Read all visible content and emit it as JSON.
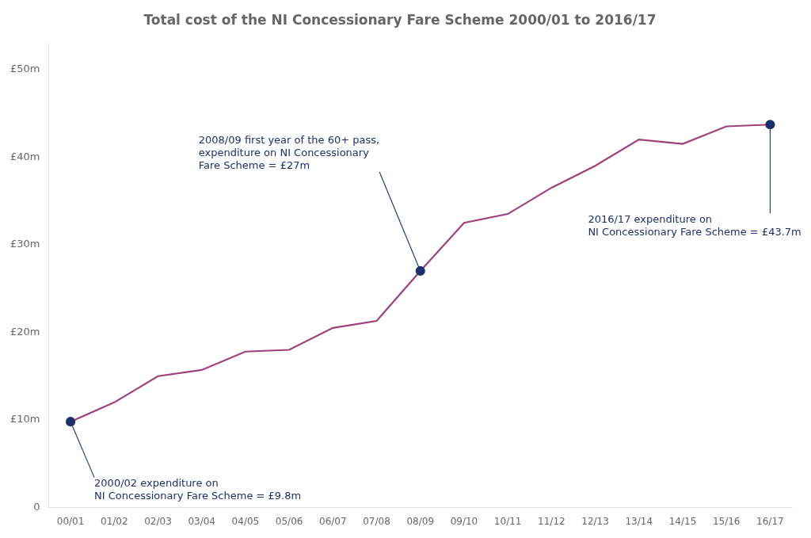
{
  "chart_data": {
    "type": "line",
    "title": "Total cost of the NI Concessionary Fare Scheme 2000/01 to 2016/17",
    "categories": [
      "00/01",
      "01/02",
      "02/03",
      "03/04",
      "04/05",
      "05/06",
      "06/07",
      "07/08",
      "08/09",
      "09/10",
      "10/11",
      "11/12",
      "12/13",
      "13/14",
      "14/15",
      "15/16",
      "16/17"
    ],
    "values": [
      9.8,
      12.0,
      15.0,
      15.7,
      17.8,
      18.0,
      20.5,
      21.3,
      27.0,
      32.5,
      33.5,
      36.5,
      39.0,
      42.0,
      41.5,
      43.5,
      43.7
    ],
    "color": "#a0407a",
    "ylim": [
      0,
      53
    ],
    "yticks": [
      0,
      {
        "value": 10,
        "label": "£10m"
      },
      {
        "value": 20,
        "label": "£20m"
      },
      {
        "value": 30,
        "label": "£30m"
      },
      {
        "value": 40,
        "label": "£40m"
      },
      {
        "value": 50,
        "label": "£50m"
      }
    ],
    "grid": false,
    "annotations": [
      {
        "text": "2000/02 expenditure on\nNI Concessionary Fare Scheme = £9.8m",
        "x": "00/01",
        "y": 9.8,
        "color": "#1c2f6e"
      },
      {
        "text": "2008/09 first year of the 60+ pass,\nexpenditure on NI Concessionary\nFare Scheme = £27m",
        "x": "08/09",
        "y": 27.0,
        "color": "#1c2f6e"
      },
      {
        "text": "2016/17 expenditure on\nNI Concessionary Fare Scheme = £43.7m",
        "x": "16/17",
        "y": 43.7,
        "color": "#1c2f6e"
      }
    ]
  }
}
